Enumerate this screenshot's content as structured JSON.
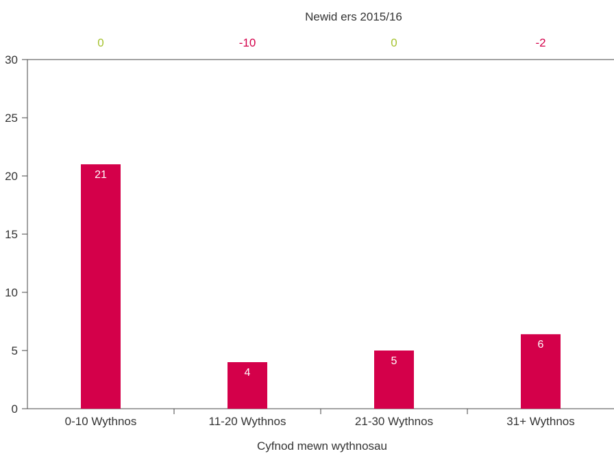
{
  "chart_data": {
    "type": "bar",
    "top_title": "Newid ers 2015/16",
    "xlabel": "Cyfnod mewn wythnosau",
    "ylabel": "",
    "categories": [
      "0-10 Wythnos",
      "11-20 Wythnos",
      "21-30 Wythnos",
      "31+ Wythnos"
    ],
    "values": [
      21,
      4,
      5,
      6.4
    ],
    "data_labels": [
      "21",
      "4",
      "5",
      "6"
    ],
    "changes": [
      "0",
      "-10",
      "0",
      "-2"
    ],
    "ylim": [
      0,
      30
    ],
    "yticks": [
      0,
      5,
      10,
      15,
      20,
      25,
      30
    ],
    "grid": false,
    "colors": {
      "bar": "#d4004a",
      "change_zero": "#a5c22d",
      "change_negative": "#d4004a",
      "axis": "#444444",
      "text": "#333333",
      "bar_label": "#ffffff"
    }
  }
}
